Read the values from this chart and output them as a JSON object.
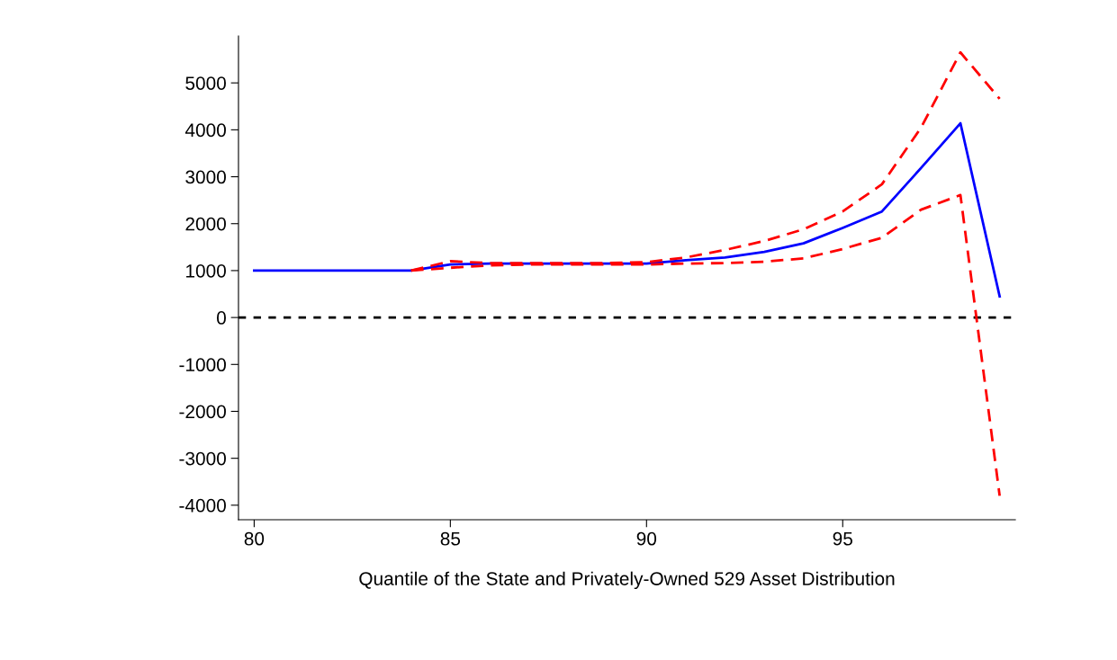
{
  "chart_data": {
    "type": "line",
    "xlabel": "Quantile of the State and Privately-Owned 529 Asset Distribution",
    "x": [
      80,
      81,
      82,
      83,
      84,
      85,
      86,
      87,
      88,
      89,
      90,
      91,
      92,
      93,
      94,
      95,
      96,
      97,
      98,
      99
    ],
    "series": [
      {
        "color": "#ff0000",
        "line_style": "dashed",
        "values": [
          null,
          null,
          null,
          null,
          1000,
          1200,
          1160,
          1160,
          1160,
          1160,
          1180,
          1280,
          1440,
          1630,
          1880,
          2260,
          2840,
          4050,
          5650,
          4660
        ]
      },
      {
        "color": "#ff0000",
        "line_style": "dashed",
        "values": [
          null,
          null,
          null,
          null,
          1000,
          1060,
          1110,
          1130,
          1130,
          1130,
          1130,
          1150,
          1160,
          1190,
          1260,
          1460,
          1700,
          2300,
          2610,
          -3800
        ]
      },
      {
        "color": "#0000ff",
        "line_style": "solid",
        "values": [
          1000,
          1000,
          1000,
          1000,
          1000,
          1130,
          1150,
          1150,
          1150,
          1150,
          1150,
          1220,
          1280,
          1400,
          1580,
          1910,
          2260,
          3190,
          4140,
          450
        ]
      }
    ],
    "xlim": [
      79.6,
      99.4
    ],
    "xticks": [
      80,
      85,
      90,
      95
    ],
    "ylim": [
      -4310,
      6000
    ],
    "yticks": [
      -4000,
      -3000,
      -2000,
      -1000,
      0,
      1000,
      2000,
      3000,
      4000,
      5000
    ],
    "ref_lines": [
      {
        "axis": "y",
        "value": 0,
        "color": "#000000",
        "line_style": "dotted"
      }
    ],
    "grid": false,
    "legend": false
  }
}
